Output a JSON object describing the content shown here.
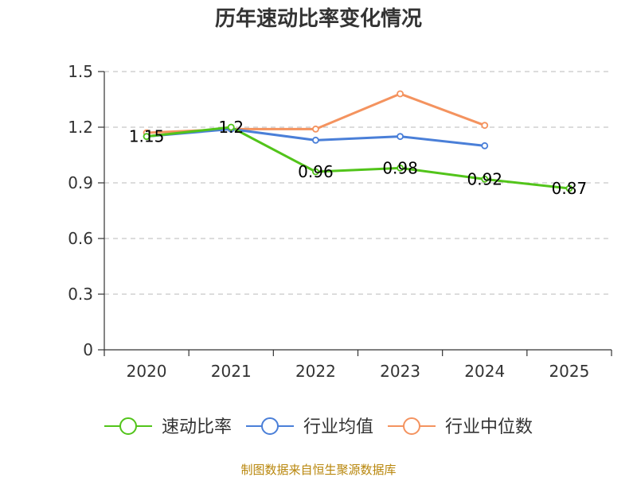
{
  "chart_data": {
    "type": "line",
    "title": "历年速动比率变化情况",
    "categories": [
      "2020",
      "2021",
      "2022",
      "2023",
      "2024",
      "2025"
    ],
    "ylim": [
      0,
      1.5
    ],
    "yticks": [
      "0",
      "0.3",
      "0.6",
      "0.9",
      "1.2",
      "1.5"
    ],
    "ytick_values": [
      0,
      0.3,
      0.6,
      0.9,
      1.2,
      1.5
    ],
    "grid": true,
    "legend_position": "bottom",
    "series": [
      {
        "name": "速动比率",
        "color": "#52c41a",
        "values": [
          1.15,
          1.2,
          0.96,
          0.98,
          0.92,
          0.87
        ],
        "labels": [
          "1.15",
          "1.2",
          "0.96",
          "0.98",
          "0.92",
          "0.87"
        ],
        "show_labels": true
      },
      {
        "name": "行业均值",
        "color": "#4a7fd8",
        "values": [
          1.15,
          1.19,
          1.13,
          1.15,
          1.1,
          null
        ],
        "show_labels": false
      },
      {
        "name": "行业中位数",
        "color": "#f4935f",
        "values": [
          1.17,
          1.19,
          1.19,
          1.38,
          1.21,
          null
        ],
        "show_labels": false
      }
    ]
  },
  "source": "制图数据来自恒生聚源数据库"
}
